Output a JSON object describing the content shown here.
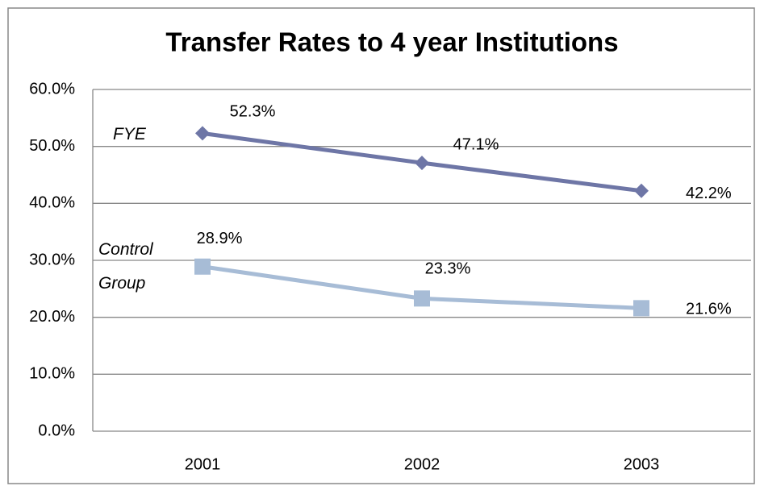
{
  "chart_data": {
    "type": "line",
    "title": "Transfer Rates to 4 year Institutions",
    "categories": [
      "2001",
      "2002",
      "2003"
    ],
    "series": [
      {
        "name": "FYE",
        "color": "#6e76a6",
        "marker": "diamond",
        "values": [
          52.3,
          47.1,
          42.2
        ],
        "value_labels": [
          "52.3%",
          "47.1%",
          "42.2%"
        ]
      },
      {
        "name": "Control Group",
        "color": "#a7bcd6",
        "marker": "square",
        "values": [
          28.9,
          23.3,
          21.6
        ],
        "value_labels": [
          "28.9%",
          "23.3%",
          "21.6%"
        ]
      }
    ],
    "ylim": [
      0,
      60
    ],
    "yticks": [
      {
        "value": 0,
        "label": "0.0%"
      },
      {
        "value": 10,
        "label": "10.0%"
      },
      {
        "value": 20,
        "label": "20.0%"
      },
      {
        "value": 30,
        "label": "30.0%"
      },
      {
        "value": 40,
        "label": "40.0%"
      },
      {
        "value": 50,
        "label": "50.0%"
      },
      {
        "value": 60,
        "label": "60.0%"
      }
    ],
    "grid": true
  }
}
